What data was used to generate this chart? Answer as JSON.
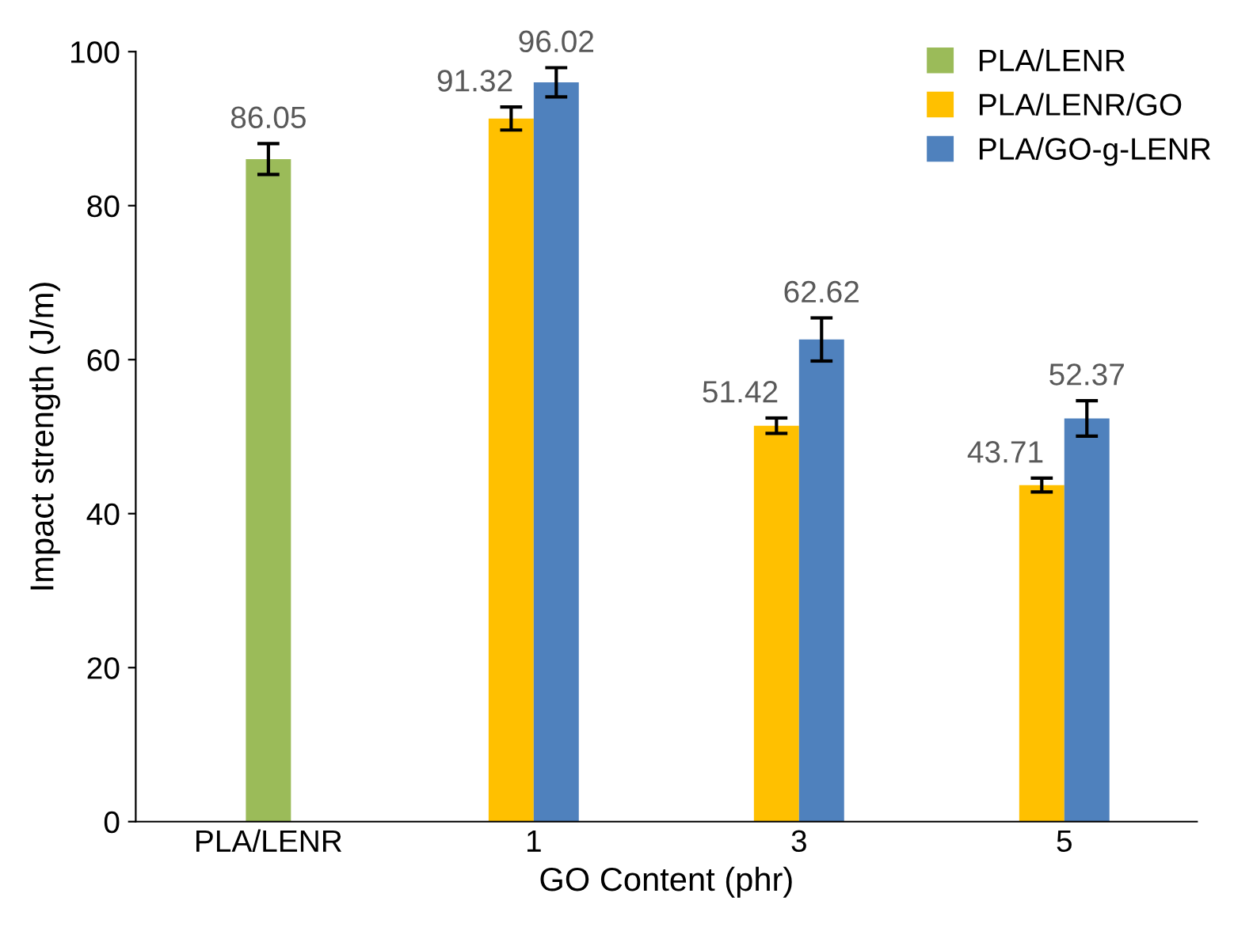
{
  "chart_data": {
    "type": "bar",
    "xlabel": "GO Content (phr)",
    "ylabel": "Impact strength (J/m)",
    "categories": [
      "PLA/LENR",
      "1",
      "3",
      "5"
    ],
    "series": [
      {
        "name": "PLA/LENR",
        "color": "#9bbb59",
        "values": [
          86.05,
          null,
          null,
          null
        ],
        "errors": [
          2.0,
          null,
          null,
          null
        ]
      },
      {
        "name": "PLA/LENR/GO",
        "color": "#ffc000",
        "values": [
          null,
          91.32,
          51.42,
          43.71
        ],
        "errors": [
          null,
          1.5,
          1.0,
          0.9
        ]
      },
      {
        "name": "PLA/GO-g-LENR",
        "color": "#4f81bd",
        "values": [
          null,
          96.02,
          62.62,
          52.37
        ],
        "errors": [
          null,
          1.9,
          2.8,
          2.3
        ]
      }
    ],
    "ylim": [
      0,
      100
    ],
    "yticks": [
      0,
      20,
      40,
      60,
      80,
      100
    ],
    "grid": false,
    "legend": "top right",
    "data_labels": true
  }
}
